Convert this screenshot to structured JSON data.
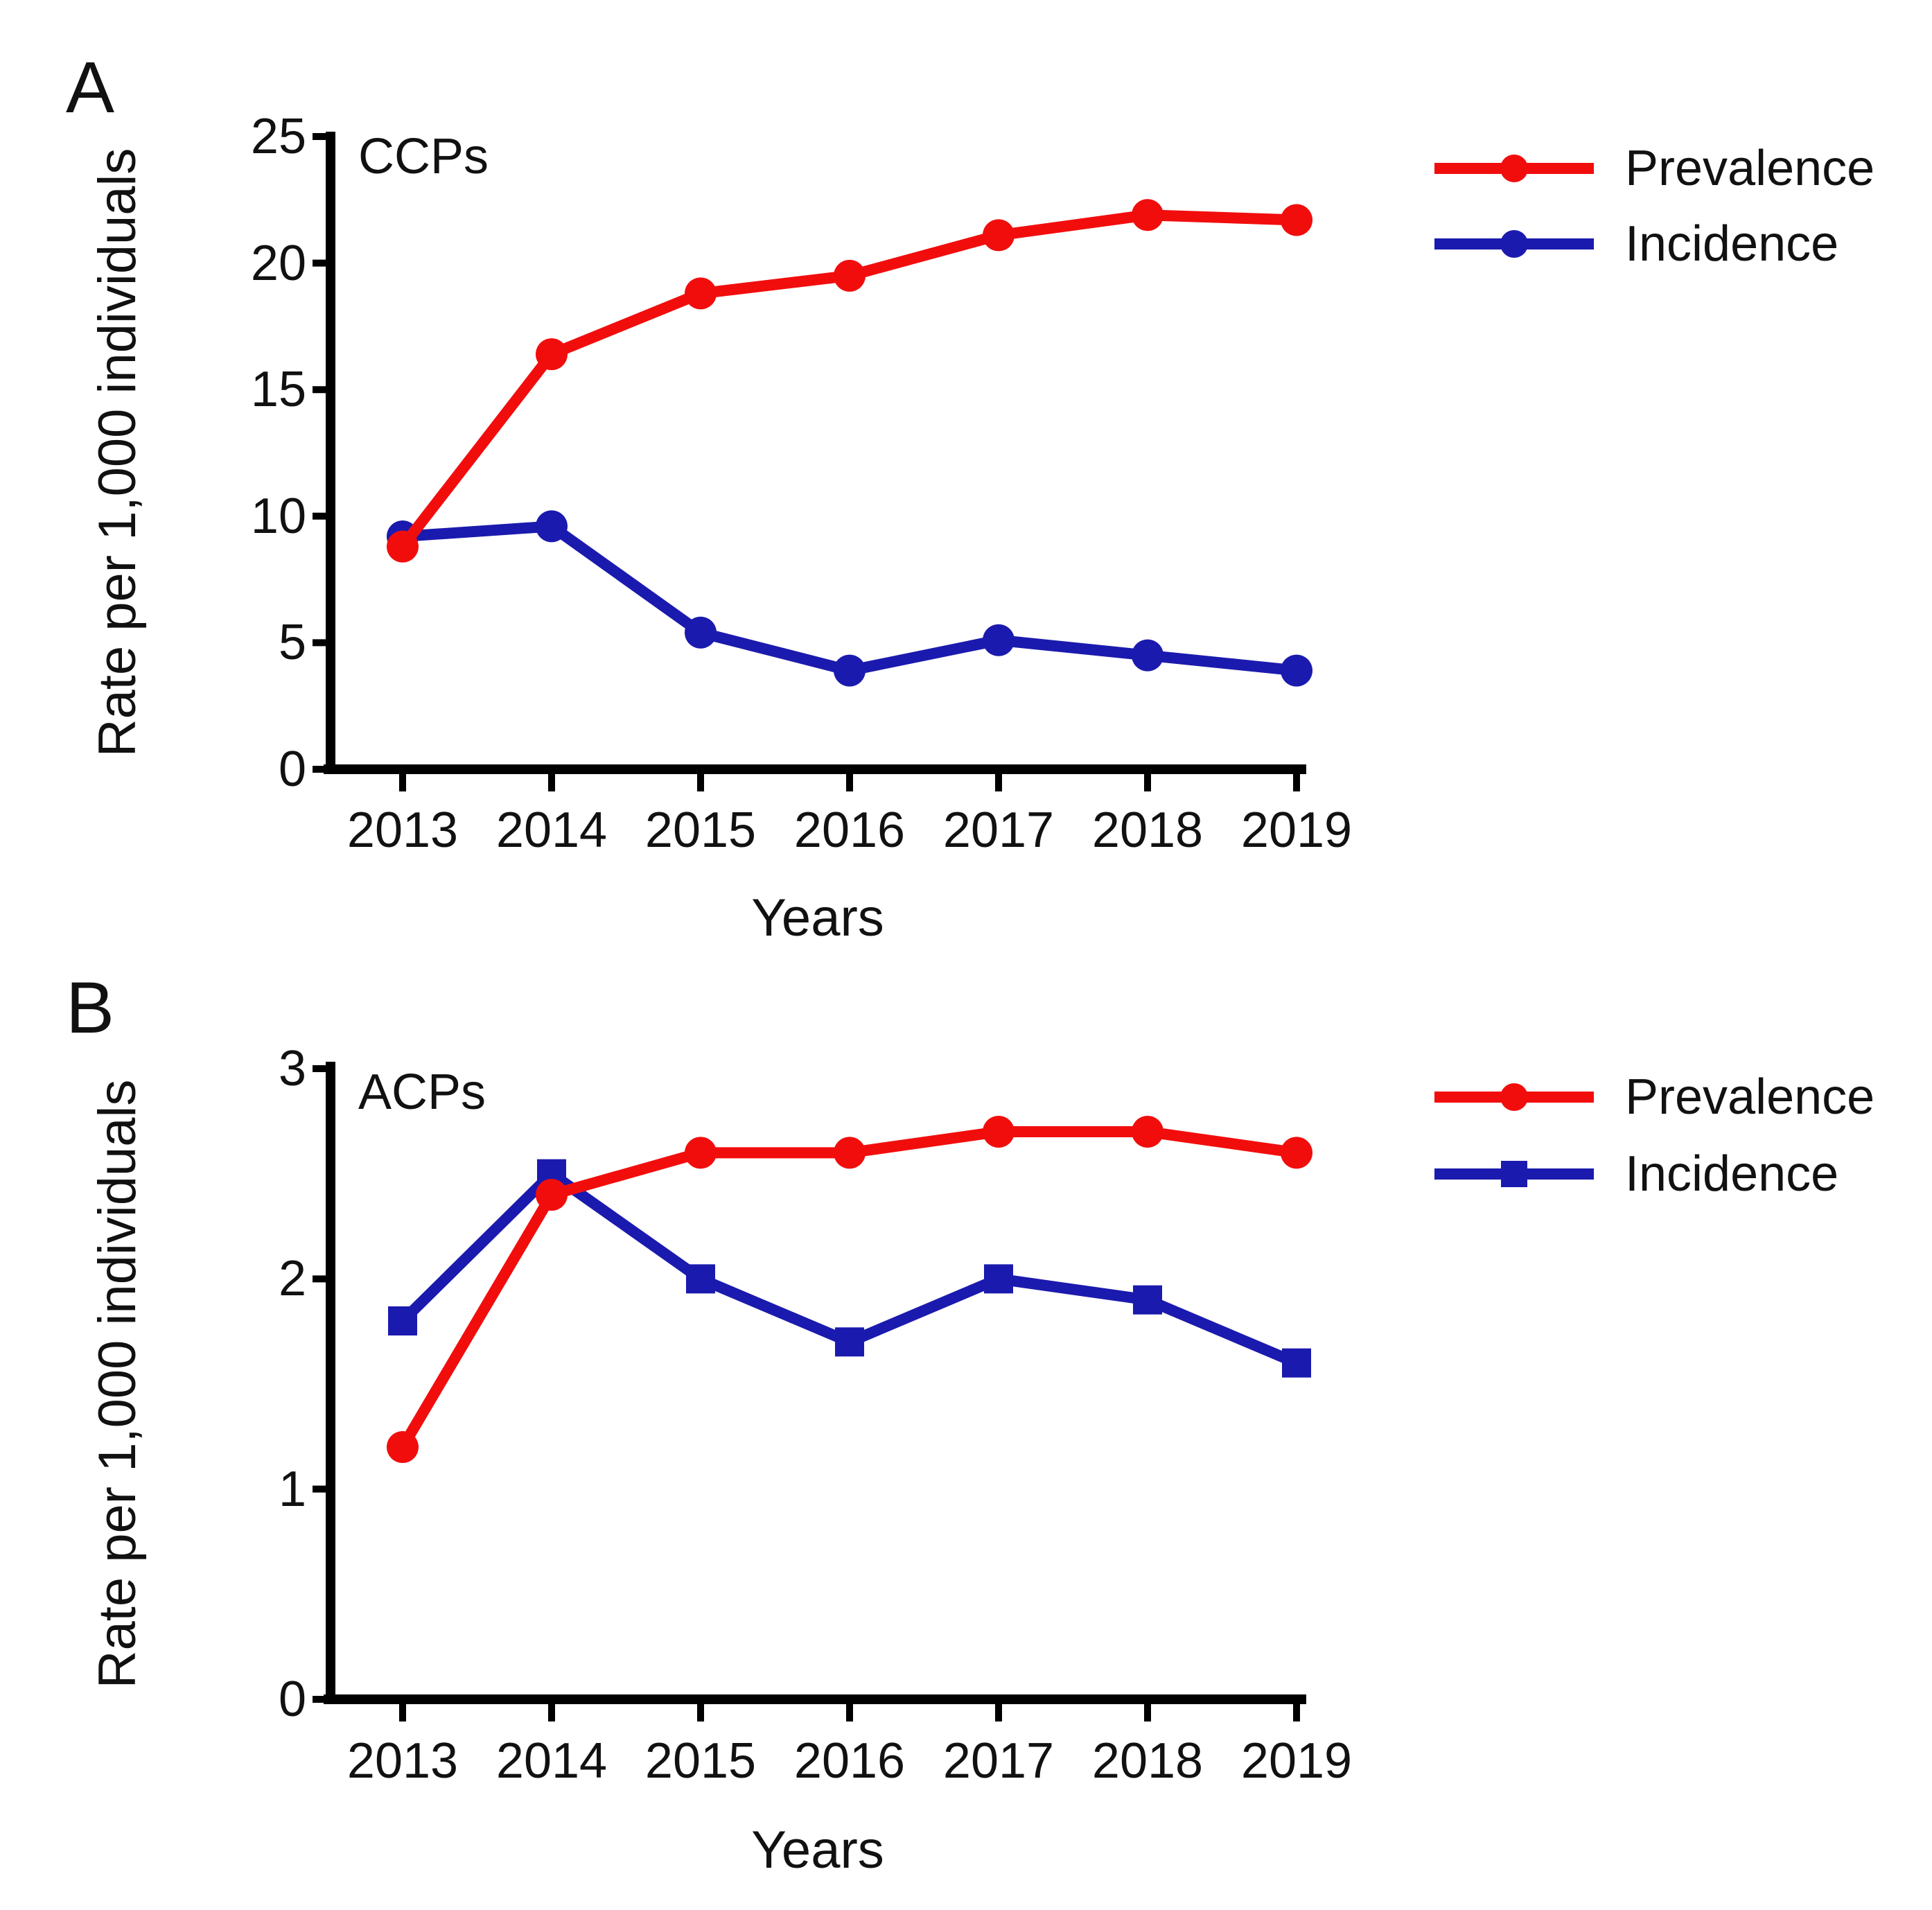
{
  "figure": {
    "background": "#ffffff",
    "text_color": "#111111",
    "axis_color": "#000000"
  },
  "chart_data": [
    {
      "type": "line",
      "panel_label": "A",
      "title": "CCPs",
      "xlabel": "Years",
      "ylabel": "Rate per 1,000 individuals",
      "x": [
        2013,
        2014,
        2015,
        2016,
        2017,
        2018,
        2019
      ],
      "ylim": [
        0,
        25
      ],
      "yticks": [
        0,
        5,
        10,
        15,
        20,
        25
      ],
      "grid": false,
      "legend_position": "right-top",
      "series": [
        {
          "name": "Prevalence",
          "color": "#f20d0d",
          "marker": "circle",
          "values": [
            8.8,
            16.4,
            18.8,
            19.5,
            21.1,
            21.9,
            21.7
          ]
        },
        {
          "name": "Incidence",
          "color": "#1b1aae",
          "marker": "circle",
          "values": [
            9.2,
            9.6,
            5.4,
            3.9,
            5.1,
            4.5,
            3.9
          ]
        }
      ]
    },
    {
      "type": "line",
      "panel_label": "B",
      "title": "ACPs",
      "xlabel": "Years",
      "ylabel": "Rate per 1,000 individuals",
      "x": [
        2013,
        2014,
        2015,
        2016,
        2017,
        2018,
        2019
      ],
      "ylim": [
        0,
        3
      ],
      "yticks": [
        0,
        1,
        2,
        3
      ],
      "grid": false,
      "legend_position": "right-top",
      "series": [
        {
          "name": "Prevalence",
          "color": "#f20d0d",
          "marker": "circle",
          "values": [
            1.2,
            2.4,
            2.6,
            2.6,
            2.7,
            2.7,
            2.6
          ]
        },
        {
          "name": "Incidence",
          "color": "#1b1aae",
          "marker": "square",
          "values": [
            1.8,
            2.5,
            2.0,
            1.7,
            2.0,
            1.9,
            1.6
          ]
        }
      ]
    }
  ]
}
